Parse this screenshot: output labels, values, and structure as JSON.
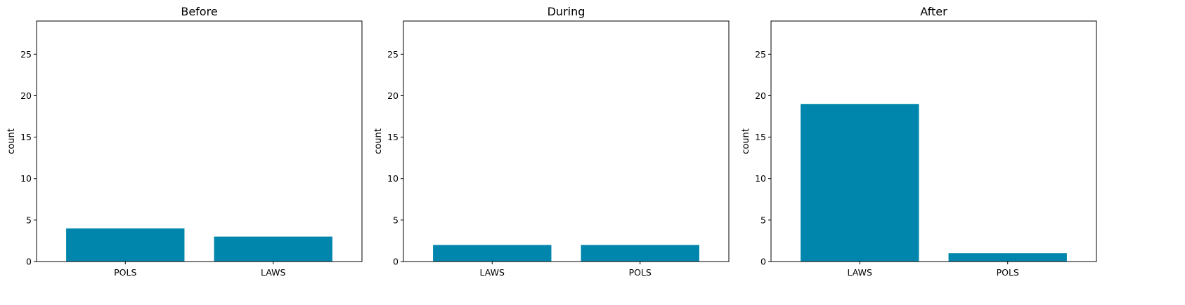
{
  "chart_data": [
    {
      "type": "bar",
      "title": "Before",
      "categories": [
        "POLS",
        "LAWS"
      ],
      "values": [
        4,
        3
      ],
      "xlabel": "",
      "ylabel": "count",
      "ylim": [
        0,
        29
      ],
      "yticks": [
        0,
        5,
        10,
        15,
        20,
        25
      ],
      "grid": false,
      "bar_color": "#0085ad"
    },
    {
      "type": "bar",
      "title": "During",
      "categories": [
        "LAWS",
        "POLS"
      ],
      "values": [
        2,
        2
      ],
      "xlabel": "",
      "ylabel": "count",
      "ylim": [
        0,
        29
      ],
      "yticks": [
        0,
        5,
        10,
        15,
        20,
        25
      ],
      "grid": false,
      "bar_color": "#0085ad"
    },
    {
      "type": "bar",
      "title": "After",
      "categories": [
        "LAWS",
        "POLS"
      ],
      "values": [
        19,
        1
      ],
      "xlabel": "",
      "ylabel": "count",
      "ylim": [
        0,
        29
      ],
      "yticks": [
        0,
        5,
        10,
        15,
        20,
        25
      ],
      "grid": false,
      "bar_color": "#0085ad"
    }
  ]
}
